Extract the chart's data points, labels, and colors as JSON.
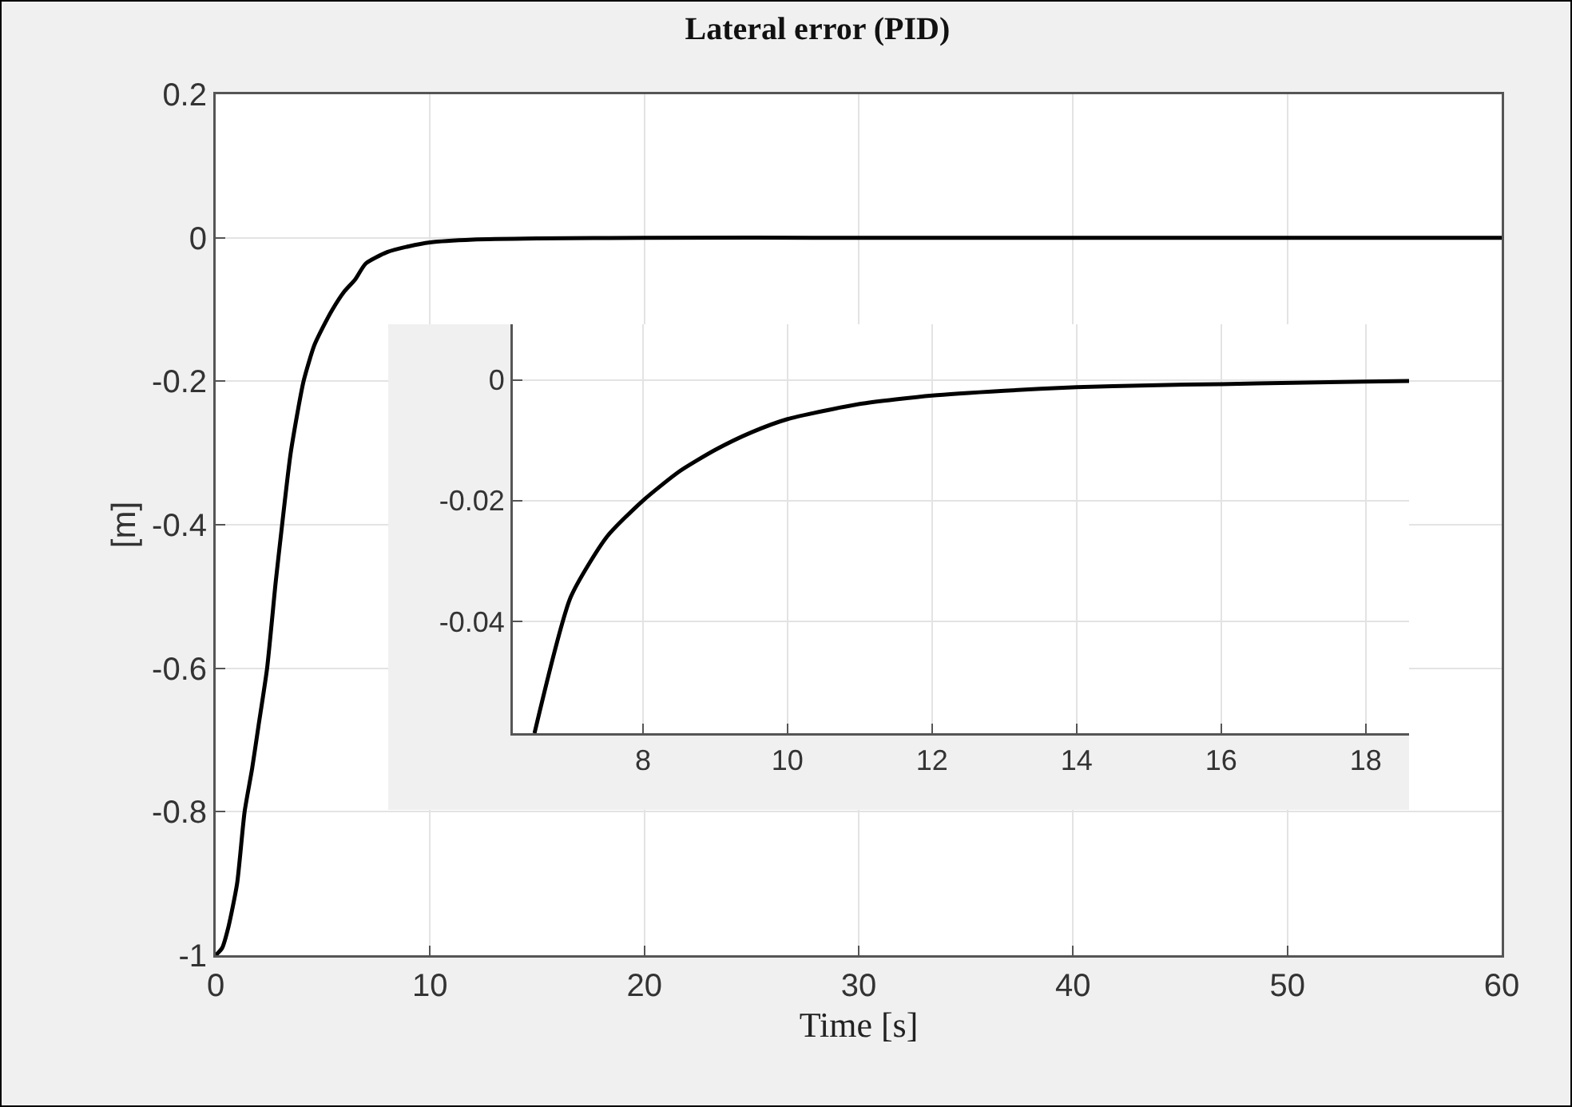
{
  "chart_data": [
    {
      "type": "line",
      "title": "Lateral error (PID)",
      "xlabel": "Time [s]",
      "ylabel": "[m]",
      "xlim": [
        0,
        60
      ],
      "ylim": [
        -1,
        0.2
      ],
      "xticks": [
        0,
        10,
        20,
        30,
        40,
        50,
        60
      ],
      "yticks": [
        -1,
        -0.8,
        -0.6,
        -0.4,
        -0.2,
        0,
        0.2
      ],
      "grid": true,
      "series": [
        {
          "color": "#000000",
          "x": [
            0,
            0.3,
            0.6,
            1,
            1.35,
            1.7,
            2,
            2.4,
            2.8,
            3.1,
            3.5,
            4.1,
            4.6,
            5,
            5.45,
            6,
            6.5,
            7,
            8,
            9,
            10,
            12,
            15,
            20,
            30,
            40,
            50,
            60
          ],
          "values": [
            -1,
            -0.99,
            -0.96,
            -0.9,
            -0.8,
            -0.74,
            -0.68,
            -0.6,
            -0.48,
            -0.4,
            -0.3,
            -0.2,
            -0.15,
            -0.125,
            -0.1,
            -0.075,
            -0.0585,
            -0.036,
            -0.02,
            -0.012,
            -0.0065,
            -0.0026,
            -0.001,
            0,
            0,
            0,
            0,
            0
          ]
        }
      ]
    },
    {
      "type": "line",
      "xlim": [
        6.2,
        18.6
      ],
      "ylim": [
        -0.0585,
        0.0092
      ],
      "xticks": [
        8,
        10,
        12,
        14,
        16,
        18
      ],
      "yticks": [
        -0.04,
        -0.02,
        0
      ],
      "grid": true,
      "series": [
        {
          "color": "#000000",
          "x": [
            6.5,
            7,
            7.5,
            8,
            8.5,
            9,
            9.5,
            10,
            11,
            12,
            13,
            14,
            15,
            16,
            17,
            18,
            18.6
          ],
          "values": [
            -0.0585,
            -0.036,
            -0.026,
            -0.02,
            -0.0152,
            -0.0116,
            -0.0087,
            -0.0065,
            -0.004,
            -0.0026,
            -0.0018,
            -0.0012,
            -0.0009,
            -0.0007,
            -0.0005,
            -0.0003,
            -0.0002
          ]
        }
      ]
    }
  ]
}
